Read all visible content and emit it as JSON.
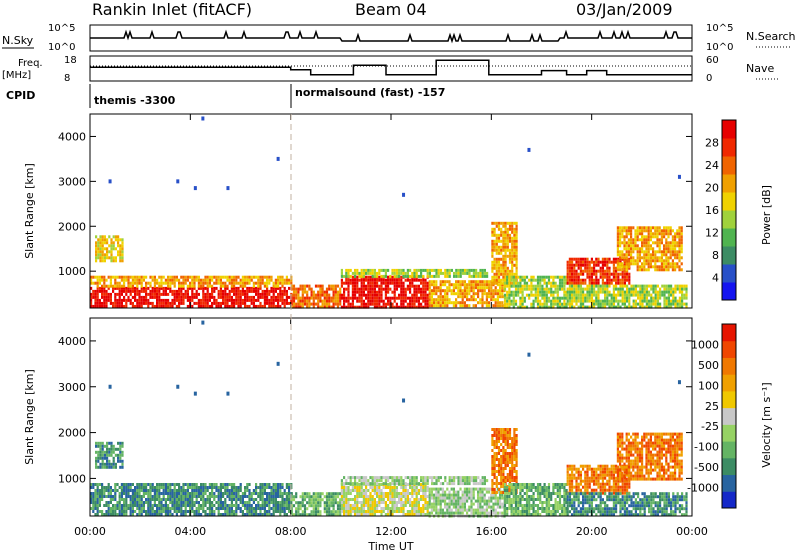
{
  "header": {
    "station": "Rankin Inlet (fitACF)",
    "beam": "Beam 04",
    "date": "03/Jan/2009"
  },
  "summary": {
    "nsky_label": "N.Sky",
    "nsky_ticks": [
      "10^5",
      "10^0"
    ],
    "nsearch_label": "N.Search",
    "nsearch_ticks": [
      "10^5",
      "10^0"
    ],
    "freq_label": "Freq.",
    "freq_unit": "[MHz]",
    "freq_ticks": [
      "18",
      "8"
    ],
    "nave_label": "Nave",
    "nave_ticks": [
      "60",
      "0"
    ],
    "cpid_label": "CPID",
    "cpid_segments": [
      {
        "start_hour": 0,
        "label": "themis -3300"
      },
      {
        "start_hour": 8,
        "label": "normalsound (fast) -157"
      }
    ],
    "nave_steps": [
      {
        "start": 0,
        "end": 8.0,
        "value": 33
      },
      {
        "start": 8.0,
        "end": 8.8,
        "value": 27
      },
      {
        "start": 8.8,
        "end": 10.5,
        "value": 15
      },
      {
        "start": 10.5,
        "end": 11.8,
        "value": 38
      },
      {
        "start": 11.8,
        "end": 13.8,
        "value": 15
      },
      {
        "start": 13.8,
        "end": 15.9,
        "value": 50
      },
      {
        "start": 15.9,
        "end": 18.0,
        "value": 15
      },
      {
        "start": 18.0,
        "end": 19.0,
        "value": 25
      },
      {
        "start": 19.0,
        "end": 19.8,
        "value": 15
      },
      {
        "start": 19.8,
        "end": 20.6,
        "value": 25
      },
      {
        "start": 20.6,
        "end": 24.0,
        "value": 15
      }
    ]
  },
  "chart_data": [
    {
      "type": "heatmap",
      "name": "power",
      "ylabel": "Slant Range [km]",
      "ylim": [
        180,
        4500
      ],
      "yticks": [
        "1000",
        "2000",
        "3000",
        "4000"
      ],
      "xlim": [
        0,
        24
      ],
      "colorbar_label": "Power [dB]",
      "colorbar_ticks": [
        "28",
        "24",
        "20",
        "16",
        "12",
        "8",
        "4"
      ],
      "colors": [
        "#1414f0",
        "#2850c8",
        "#3c8c64",
        "#50b450",
        "#a0d23c",
        "#f0d200",
        "#f0a000",
        "#f06400",
        "#f02800",
        "#e60000"
      ],
      "regions": [
        {
          "t0": 0.0,
          "t1": 8.0,
          "r0": 200,
          "r1": 650,
          "level": 9
        },
        {
          "t0": 0.0,
          "t1": 8.0,
          "r0": 650,
          "r1": 900,
          "level": 6
        },
        {
          "t0": 0.2,
          "t1": 1.3,
          "r0": 1250,
          "r1": 1800,
          "level": 5
        },
        {
          "t0": 8.0,
          "t1": 10.0,
          "r0": 200,
          "r1": 700,
          "level": 7
        },
        {
          "t0": 10.0,
          "t1": 13.5,
          "r0": 200,
          "r1": 900,
          "level": 9
        },
        {
          "t0": 10.0,
          "t1": 15.8,
          "r0": 900,
          "r1": 1050,
          "level": 4
        },
        {
          "t0": 13.5,
          "t1": 16.5,
          "r0": 200,
          "r1": 800,
          "level": 6
        },
        {
          "t0": 16.0,
          "t1": 17.0,
          "r0": 700,
          "r1": 2100,
          "level": 6
        },
        {
          "t0": 16.5,
          "t1": 19.0,
          "r0": 200,
          "r1": 900,
          "level": 4
        },
        {
          "t0": 19.0,
          "t1": 21.5,
          "r0": 700,
          "r1": 1300,
          "level": 8
        },
        {
          "t0": 21.0,
          "t1": 23.6,
          "r0": 1000,
          "r1": 2000,
          "level": 6
        },
        {
          "t0": 19.0,
          "t1": 23.8,
          "r0": 200,
          "r1": 700,
          "level": 4
        }
      ],
      "markers": [
        {
          "t": 0.8,
          "r": 3000
        },
        {
          "t": 3.5,
          "r": 3000
        },
        {
          "t": 4.2,
          "r": 2850
        },
        {
          "t": 5.5,
          "r": 2850
        },
        {
          "t": 4.5,
          "r": 4400
        },
        {
          "t": 7.5,
          "r": 3500
        },
        {
          "t": 12.5,
          "r": 2700
        },
        {
          "t": 17.5,
          "r": 3700
        },
        {
          "t": 23.5,
          "r": 3100
        }
      ]
    },
    {
      "type": "heatmap",
      "name": "velocity",
      "ylabel": "Slant Range [km]",
      "ylim": [
        180,
        4500
      ],
      "yticks": [
        "1000",
        "2000",
        "3000",
        "4000"
      ],
      "xlim": [
        0,
        24
      ],
      "xticks": [
        "00:00",
        "04:00",
        "08:00",
        "12:00",
        "16:00",
        "20:00",
        "00:00"
      ],
      "xlabel": "Time UT",
      "colorbar_label": "Velocity [m s⁻¹]",
      "colorbar_ticks": [
        "1000",
        "500",
        "100",
        "25",
        "-25",
        "-100",
        "-500",
        "-1000"
      ],
      "colors": [
        "#1428c8",
        "#2864a0",
        "#3c8c64",
        "#64b464",
        "#96d264",
        "#c8c8c8",
        "#f0c800",
        "#f0a000",
        "#f07800",
        "#f04600",
        "#e61400"
      ],
      "regions": [
        {
          "t0": 0.0,
          "t1": 8.0,
          "r0": 200,
          "r1": 900,
          "level": 2
        },
        {
          "t0": 0.2,
          "t1": 1.3,
          "r0": 1250,
          "r1": 1800,
          "level": 2
        },
        {
          "t0": 8.0,
          "t1": 10.0,
          "r0": 200,
          "r1": 700,
          "level": 3
        },
        {
          "t0": 10.0,
          "t1": 13.5,
          "r0": 200,
          "r1": 900,
          "level": 5
        },
        {
          "t0": 10.0,
          "t1": 15.8,
          "r0": 900,
          "r1": 1050,
          "level": 4
        },
        {
          "t0": 13.5,
          "t1": 16.5,
          "r0": 200,
          "r1": 800,
          "level": 4
        },
        {
          "t0": 16.0,
          "t1": 17.0,
          "r0": 700,
          "r1": 2100,
          "level": 8
        },
        {
          "t0": 16.5,
          "t1": 19.0,
          "r0": 200,
          "r1": 900,
          "level": 3
        },
        {
          "t0": 19.0,
          "t1": 21.5,
          "r0": 700,
          "r1": 1300,
          "level": 8
        },
        {
          "t0": 21.0,
          "t1": 23.6,
          "r0": 1000,
          "r1": 2000,
          "level": 8
        },
        {
          "t0": 19.0,
          "t1": 23.8,
          "r0": 200,
          "r1": 700,
          "level": 2
        }
      ],
      "markers": [
        {
          "t": 0.8,
          "r": 3000
        },
        {
          "t": 3.5,
          "r": 3000
        },
        {
          "t": 4.2,
          "r": 2850
        },
        {
          "t": 5.5,
          "r": 2850
        },
        {
          "t": 4.5,
          "r": 4400
        },
        {
          "t": 7.5,
          "r": 3500
        },
        {
          "t": 12.5,
          "r": 2700
        },
        {
          "t": 17.5,
          "r": 3700
        },
        {
          "t": 23.5,
          "r": 3100
        }
      ]
    }
  ]
}
